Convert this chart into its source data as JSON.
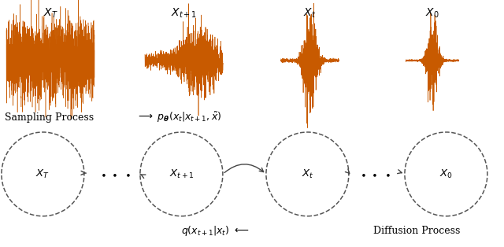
{
  "bg_color": "#ffffff",
  "signal_color": "#C85A00",
  "node_edgecolor": "#444444",
  "node_facecolor": "#ffffff",
  "top_labels": [
    "$X_T$",
    "$X_{t+1}$",
    "$X_t$",
    "$X_0$"
  ],
  "node_labels": [
    "$X_T$",
    "$X_{t+1}$",
    "$X_t$",
    "$X_0$"
  ],
  "sampling_label": "Sampling Process",
  "sampling_formula": "$\\longrightarrow\\ p_{\\boldsymbol{\\theta}}(x_t|x_{t+1}, \\tilde{x})$",
  "diffusion_label": "Diffusion Process",
  "diffusion_formula": "$q(x_{t+1}|x_t)\\ \\longleftarrow$"
}
